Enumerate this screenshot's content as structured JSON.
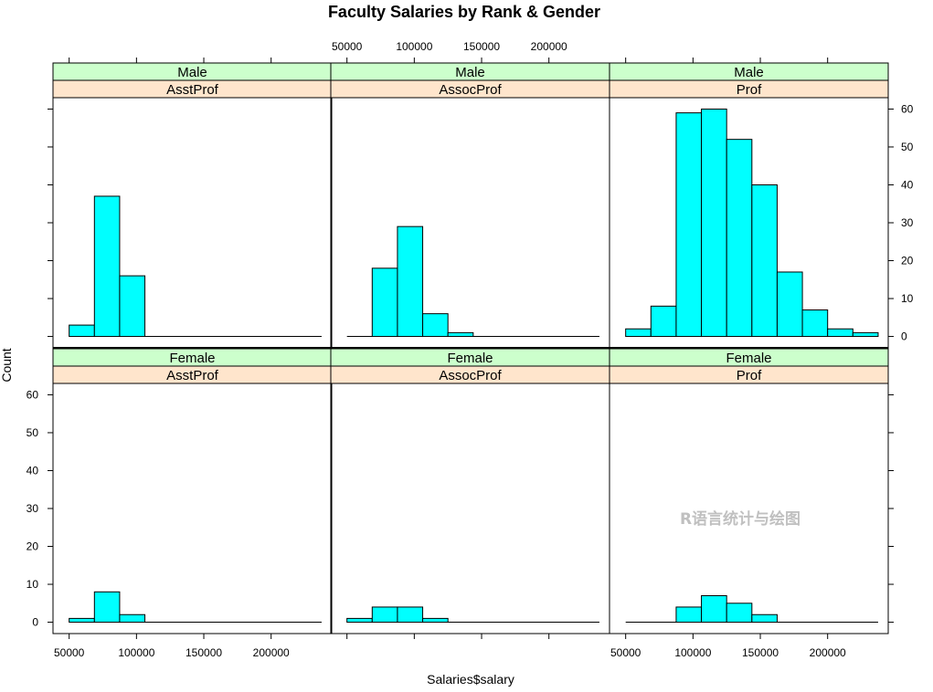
{
  "chart_data": {
    "type": "bar",
    "title": "Faculty Salaries by Rank & Gender",
    "xlabel": "Salaries$salary",
    "ylabel": "Count",
    "xlim": [
      38000,
      245000
    ],
    "ylim": [
      -3,
      63
    ],
    "x_ticks": [
      50000,
      100000,
      150000,
      200000
    ],
    "y_ticks": [
      0,
      10,
      20,
      30,
      40,
      50,
      60
    ],
    "bin_edges": [
      50000,
      68750,
      87500,
      106250,
      125000,
      143750,
      162500,
      181250,
      200000,
      218750,
      237500
    ],
    "bar_color": "#00ffff",
    "strip_gender_color": "#ccffcc",
    "strip_rank_color": "#ffe5cc",
    "watermark": "R语言统计与绘图",
    "panels": [
      {
        "gender": "Male",
        "rank": "AsstProf",
        "row": 0,
        "col": 0,
        "counts": [
          3,
          37,
          16,
          0,
          0,
          0,
          0,
          0,
          0,
          0
        ]
      },
      {
        "gender": "Male",
        "rank": "AssocProf",
        "row": 0,
        "col": 1,
        "counts": [
          0,
          18,
          29,
          6,
          1,
          0,
          0,
          0,
          0,
          0
        ]
      },
      {
        "gender": "Male",
        "rank": "Prof",
        "row": 0,
        "col": 2,
        "counts": [
          2,
          8,
          59,
          60,
          52,
          40,
          17,
          7,
          2,
          1
        ]
      },
      {
        "gender": "Female",
        "rank": "AsstProf",
        "row": 1,
        "col": 0,
        "counts": [
          1,
          8,
          2,
          0,
          0,
          0,
          0,
          0,
          0,
          0
        ]
      },
      {
        "gender": "Female",
        "rank": "AssocProf",
        "row": 1,
        "col": 1,
        "counts": [
          1,
          4,
          4,
          1,
          0,
          0,
          0,
          0,
          0,
          0
        ]
      },
      {
        "gender": "Female",
        "rank": "Prof",
        "row": 1,
        "col": 2,
        "counts": [
          0,
          0,
          4,
          7,
          5,
          2,
          0,
          0,
          0,
          0
        ]
      }
    ]
  }
}
